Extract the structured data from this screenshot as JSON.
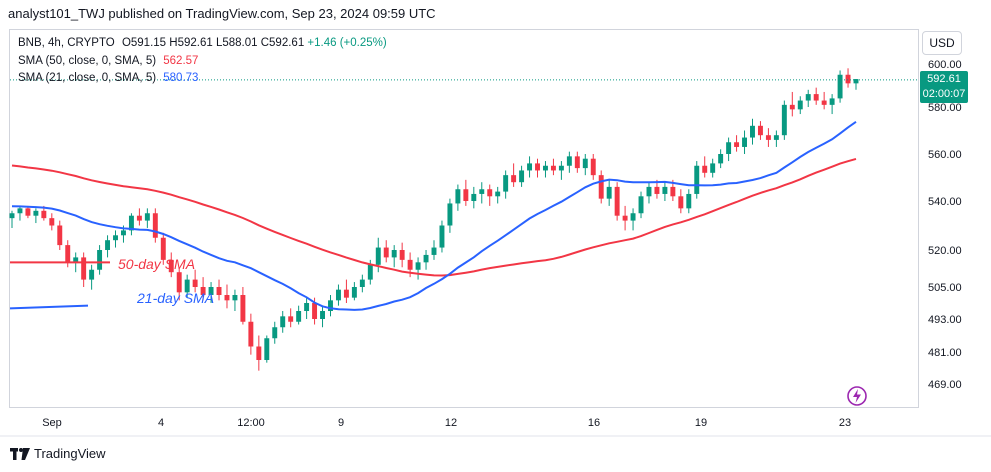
{
  "header": {
    "text": "analyst101_TWJ published on TradingView.com, Sep 23, 2024 09:59 UTC"
  },
  "legend": {
    "symbol": "BNB, 4h, CRYPTO",
    "open": "O591.15",
    "high": "H592.61",
    "low": "L588.01",
    "close": "C592.61",
    "change": "+1.46 (+0.25%)",
    "sma50_label": "SMA (50, close, 0, SMA, 5)",
    "sma50_value": "562.57",
    "sma21_label": "SMA (21, close, 0, SMA, 5)",
    "sma21_value": "580.73"
  },
  "currency_button": "USD",
  "price_tag": {
    "price": "592.61",
    "countdown": "02:00:07"
  },
  "footer": {
    "brand": "TradingView"
  },
  "colors": {
    "up": "#089981",
    "down": "#f23645",
    "sma50": "#f23645",
    "sma21": "#2962ff"
  },
  "chart_data": {
    "type": "candlestick",
    "y_axis": {
      "ticks": [
        "600.00",
        "580.00",
        "560.00",
        "540.00",
        "520.00",
        "505.00",
        "493.00",
        "481.00",
        "469.00"
      ]
    },
    "x_axis": {
      "ticks": [
        "Sep",
        "4",
        "12:00",
        "9",
        "12",
        "16",
        "19",
        "23"
      ]
    },
    "annotations": [
      {
        "text": "50-day SMA",
        "color": "#f23645"
      },
      {
        "text": "21-day SMA",
        "color": "#2962ff"
      }
    ],
    "current_price": 592.61,
    "candles": [
      [
        533,
        536,
        529,
        535
      ],
      [
        535,
        538,
        532,
        537
      ],
      [
        537,
        538,
        533,
        534
      ],
      [
        534,
        537,
        531,
        536
      ],
      [
        536,
        538,
        532,
        533
      ],
      [
        533,
        535,
        528,
        530
      ],
      [
        530,
        532,
        520,
        522
      ],
      [
        522,
        524,
        513,
        515
      ],
      [
        515,
        519,
        511,
        517
      ],
      [
        517,
        519,
        505,
        508
      ],
      [
        508,
        514,
        504,
        512
      ],
      [
        512,
        522,
        510,
        520
      ],
      [
        520,
        526,
        517,
        524
      ],
      [
        524,
        528,
        521,
        526
      ],
      [
        526,
        530,
        523,
        528
      ],
      [
        528,
        535,
        526,
        534
      ],
      [
        534,
        537,
        530,
        532
      ],
      [
        532,
        537,
        529,
        535
      ],
      [
        535,
        537,
        523,
        525
      ],
      [
        525,
        527,
        514,
        516
      ],
      [
        516,
        519,
        509,
        511
      ],
      [
        511,
        513,
        500,
        503
      ],
      [
        503,
        510,
        501,
        508
      ],
      [
        508,
        512,
        503,
        505
      ],
      [
        505,
        509,
        500,
        502
      ],
      [
        502,
        507,
        499,
        505
      ],
      [
        505,
        508,
        500,
        502
      ],
      [
        502,
        506,
        497,
        500
      ],
      [
        500,
        504,
        496,
        502
      ],
      [
        502,
        505,
        491,
        492
      ],
      [
        492,
        495,
        480,
        483
      ],
      [
        483,
        487,
        474,
        478
      ],
      [
        478,
        487,
        477,
        486
      ],
      [
        486,
        492,
        484,
        490
      ],
      [
        490,
        496,
        488,
        494
      ],
      [
        494,
        497,
        490,
        492
      ],
      [
        492,
        498,
        491,
        496
      ],
      [
        496,
        501,
        493,
        499
      ],
      [
        499,
        501,
        491,
        493
      ],
      [
        493,
        498,
        490,
        496
      ],
      [
        496,
        502,
        494,
        500
      ],
      [
        500,
        506,
        498,
        504
      ],
      [
        504,
        508,
        499,
        501
      ],
      [
        501,
        507,
        500,
        505
      ],
      [
        505,
        510,
        503,
        508
      ],
      [
        508,
        516,
        506,
        514
      ],
      [
        514,
        525,
        511,
        521
      ],
      [
        521,
        524,
        515,
        517
      ],
      [
        517,
        522,
        513,
        520
      ],
      [
        520,
        523,
        513,
        516
      ],
      [
        516,
        519,
        509,
        512
      ],
      [
        512,
        517,
        508,
        515
      ],
      [
        515,
        520,
        512,
        518
      ],
      [
        518,
        524,
        516,
        521
      ],
      [
        521,
        532,
        519,
        530
      ],
      [
        530,
        541,
        527,
        539
      ],
      [
        539,
        547,
        536,
        545
      ],
      [
        545,
        549,
        538,
        540
      ],
      [
        540,
        546,
        537,
        543
      ],
      [
        543,
        548,
        539,
        545
      ],
      [
        545,
        547,
        538,
        542
      ],
      [
        542,
        546,
        539,
        544
      ],
      [
        544,
        553,
        541,
        551
      ],
      [
        551,
        556,
        546,
        548
      ],
      [
        548,
        555,
        546,
        553
      ],
      [
        553,
        559,
        550,
        556
      ],
      [
        556,
        558,
        550,
        553
      ],
      [
        553,
        557,
        550,
        555
      ],
      [
        555,
        558,
        551,
        553
      ],
      [
        553,
        557,
        549,
        555
      ],
      [
        555,
        561,
        552,
        559
      ],
      [
        559,
        561,
        552,
        554
      ],
      [
        554,
        560,
        551,
        558
      ],
      [
        558,
        560,
        549,
        551
      ],
      [
        551,
        553,
        539,
        541
      ],
      [
        541,
        549,
        538,
        546
      ],
      [
        546,
        548,
        532,
        534
      ],
      [
        534,
        538,
        528,
        532
      ],
      [
        532,
        537,
        528,
        535
      ],
      [
        535,
        544,
        533,
        542
      ],
      [
        542,
        548,
        539,
        546
      ],
      [
        546,
        549,
        541,
        543
      ],
      [
        543,
        548,
        540,
        546
      ],
      [
        546,
        549,
        540,
        542
      ],
      [
        542,
        545,
        535,
        537
      ],
      [
        537,
        545,
        535,
        543
      ],
      [
        543,
        557,
        541,
        555
      ],
      [
        555,
        559,
        550,
        552
      ],
      [
        552,
        558,
        550,
        556
      ],
      [
        556,
        562,
        554,
        560
      ],
      [
        560,
        567,
        557,
        565
      ],
      [
        565,
        568,
        561,
        563
      ],
      [
        563,
        570,
        560,
        567
      ],
      [
        567,
        575,
        564,
        572
      ],
      [
        572,
        574,
        566,
        568
      ],
      [
        568,
        571,
        563,
        566
      ],
      [
        566,
        570,
        563,
        568
      ],
      [
        568,
        583,
        566,
        581
      ],
      [
        581,
        587,
        576,
        579
      ],
      [
        579,
        585,
        577,
        583
      ],
      [
        583,
        588,
        580,
        586
      ],
      [
        586,
        589,
        581,
        583
      ],
      [
        583,
        587,
        579,
        581
      ],
      [
        581,
        586,
        577,
        584
      ],
      [
        584,
        597,
        582,
        595
      ],
      [
        595,
        598,
        589,
        591
      ],
      [
        591,
        593,
        588,
        593
      ]
    ]
  }
}
